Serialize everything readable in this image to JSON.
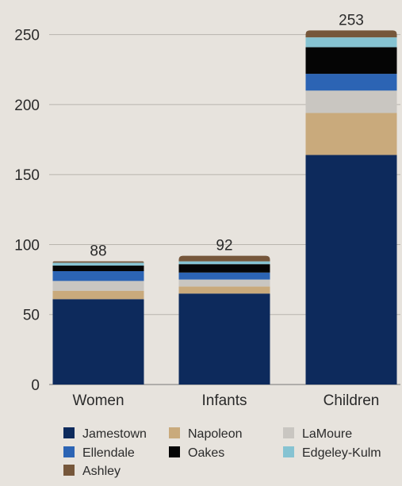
{
  "chart_data": {
    "type": "bar",
    "stacked": true,
    "categories": [
      "Women",
      "Infants",
      "Children"
    ],
    "totals": [
      88,
      92,
      253
    ],
    "ylim": [
      0,
      260
    ],
    "yticks": [
      0,
      50,
      100,
      150,
      200,
      250
    ],
    "grid": true,
    "legend_placement": "bottom",
    "series": [
      {
        "name": "Jamestown",
        "color": "#0d2a5c",
        "values": [
          61,
          65,
          164
        ]
      },
      {
        "name": "Napoleon",
        "color": "#c9aa7c",
        "values": [
          6,
          5,
          30
        ]
      },
      {
        "name": "LaMoure",
        "color": "#c9c6c1",
        "values": [
          7,
          5,
          16
        ]
      },
      {
        "name": "Ellendale",
        "color": "#2c64b4",
        "values": [
          7,
          5,
          12
        ]
      },
      {
        "name": "Oakes",
        "color": "#050505",
        "values": [
          4,
          6,
          19
        ]
      },
      {
        "name": "Edgeley-Kulm",
        "color": "#86c3d2",
        "values": [
          2,
          2,
          7
        ]
      },
      {
        "name": "Ashley",
        "color": "#76573b",
        "values": [
          1,
          4,
          5
        ]
      }
    ]
  }
}
